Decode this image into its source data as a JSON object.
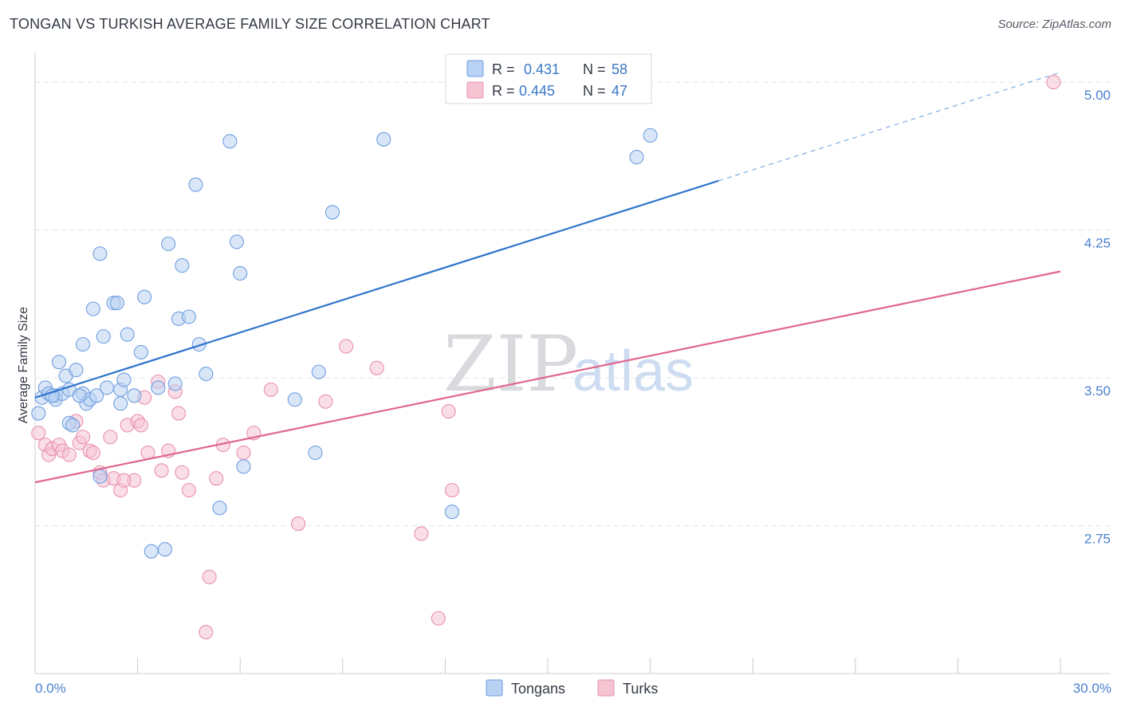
{
  "title": "TONGAN VS TURKISH AVERAGE FAMILY SIZE CORRELATION CHART",
  "source": "Source: ZipAtlas.com",
  "watermark": {
    "zip": "ZIP",
    "atlas": "atlas"
  },
  "colors": {
    "tongan": "#6f9fe0",
    "tongan_fill": "#b9d1f3",
    "tongan_line": "#2f74cc",
    "turk": "#e890ae",
    "turk_fill": "#f6c3d3",
    "turk_line": "#e0668f",
    "grid": "#e2e4e8",
    "tick": "#4a7fd0"
  },
  "legend_top": {
    "rows": [
      {
        "r_label": "R =",
        "r_value": "0.431",
        "n_label": "N =",
        "n_value": "58"
      },
      {
        "r_label": "R =",
        "r_value": "0.445",
        "n_label": "N =",
        "n_value": "47"
      }
    ]
  },
  "legend_bottom": {
    "series": [
      "Tongans",
      "Turks"
    ]
  },
  "chart_data": {
    "type": "scatter",
    "ylabel": "Average Family Size",
    "xlabel": "",
    "xlim": [
      0,
      30
    ],
    "ylim": [
      2.0,
      5.15
    ],
    "x_tick_labels": [
      "0.0%",
      "30.0%"
    ],
    "y_ticks": [
      2.75,
      3.5,
      4.25,
      5.0
    ],
    "y_tick_labels": [
      "2.75",
      "3.50",
      "4.25",
      "5.00"
    ],
    "series": [
      {
        "name": "Tongans",
        "trend": {
          "x0": 0,
          "y0": 3.4,
          "x1": 20,
          "y1": 4.5,
          "x_ext": 30,
          "y_ext": 5.05
        },
        "points": [
          [
            0.1,
            3.32
          ],
          [
            0.2,
            3.4
          ],
          [
            0.3,
            3.45
          ],
          [
            0.4,
            3.42
          ],
          [
            0.6,
            3.41
          ],
          [
            0.6,
            3.39
          ],
          [
            0.7,
            3.58
          ],
          [
            0.8,
            3.42
          ],
          [
            0.9,
            3.51
          ],
          [
            1.0,
            3.44
          ],
          [
            1.0,
            3.27
          ],
          [
            1.2,
            3.54
          ],
          [
            1.1,
            3.26
          ],
          [
            1.4,
            3.42
          ],
          [
            1.4,
            3.67
          ],
          [
            1.5,
            3.37
          ],
          [
            1.6,
            3.39
          ],
          [
            1.7,
            3.85
          ],
          [
            1.8,
            3.41
          ],
          [
            1.9,
            3.0
          ],
          [
            1.9,
            4.13
          ],
          [
            2.0,
            3.71
          ],
          [
            2.1,
            3.45
          ],
          [
            2.3,
            3.88
          ],
          [
            2.4,
            3.88
          ],
          [
            2.5,
            3.44
          ],
          [
            2.5,
            3.37
          ],
          [
            2.6,
            3.49
          ],
          [
            2.7,
            3.72
          ],
          [
            2.9,
            3.41
          ],
          [
            3.1,
            3.63
          ],
          [
            3.2,
            3.91
          ],
          [
            3.4,
            2.62
          ],
          [
            3.6,
            3.45
          ],
          [
            3.8,
            2.63
          ],
          [
            3.9,
            4.18
          ],
          [
            4.1,
            3.47
          ],
          [
            4.2,
            3.8
          ],
          [
            4.3,
            4.07
          ],
          [
            4.5,
            3.81
          ],
          [
            4.7,
            4.48
          ],
          [
            4.8,
            3.67
          ],
          [
            5.0,
            3.52
          ],
          [
            5.4,
            2.84
          ],
          [
            5.7,
            4.7
          ],
          [
            5.9,
            4.19
          ],
          [
            6.0,
            4.03
          ],
          [
            6.1,
            3.05
          ],
          [
            7.6,
            3.39
          ],
          [
            8.2,
            3.12
          ],
          [
            8.3,
            3.53
          ],
          [
            8.7,
            4.34
          ],
          [
            10.2,
            4.71
          ],
          [
            12.2,
            2.82
          ],
          [
            17.6,
            4.62
          ],
          [
            18.0,
            4.73
          ],
          [
            0.5,
            3.41
          ],
          [
            1.3,
            3.41
          ]
        ]
      },
      {
        "name": "Turks",
        "trend": {
          "x0": 0,
          "y0": 2.97,
          "x1": 30,
          "y1": 4.04
        },
        "points": [
          [
            0.1,
            3.22
          ],
          [
            0.3,
            3.16
          ],
          [
            0.4,
            3.11
          ],
          [
            0.5,
            3.14
          ],
          [
            0.7,
            3.16
          ],
          [
            0.8,
            3.13
          ],
          [
            1.0,
            3.11
          ],
          [
            1.2,
            3.28
          ],
          [
            1.3,
            3.17
          ],
          [
            1.4,
            3.2
          ],
          [
            1.6,
            3.13
          ],
          [
            1.7,
            3.12
          ],
          [
            1.9,
            3.02
          ],
          [
            2.0,
            2.98
          ],
          [
            2.2,
            3.2
          ],
          [
            2.3,
            2.99
          ],
          [
            2.5,
            2.93
          ],
          [
            2.7,
            3.26
          ],
          [
            2.9,
            2.98
          ],
          [
            3.0,
            3.28
          ],
          [
            3.1,
            3.26
          ],
          [
            3.2,
            3.4
          ],
          [
            3.3,
            3.12
          ],
          [
            3.6,
            3.48
          ],
          [
            3.7,
            3.03
          ],
          [
            3.9,
            3.13
          ],
          [
            4.1,
            3.43
          ],
          [
            4.2,
            3.32
          ],
          [
            4.3,
            3.02
          ],
          [
            4.5,
            2.93
          ],
          [
            5.1,
            2.49
          ],
          [
            5.3,
            2.99
          ],
          [
            5.5,
            3.16
          ],
          [
            6.1,
            3.12
          ],
          [
            6.4,
            3.22
          ],
          [
            6.9,
            3.44
          ],
          [
            7.7,
            2.76
          ],
          [
            8.5,
            3.38
          ],
          [
            9.1,
            3.66
          ],
          [
            10.0,
            3.55
          ],
          [
            11.3,
            2.71
          ],
          [
            11.8,
            2.28
          ],
          [
            12.1,
            3.33
          ],
          [
            12.2,
            2.93
          ],
          [
            5.0,
            2.21
          ],
          [
            29.8,
            5.0
          ],
          [
            2.6,
            2.98
          ]
        ]
      }
    ]
  }
}
